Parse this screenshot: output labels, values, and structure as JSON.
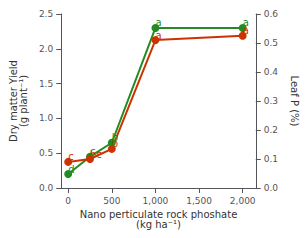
{
  "chart_data": {
    "type": "line",
    "xlabel": "Nano perticulate rock phoshate\n(kg ha⁻¹)",
    "ylabel": "Dry matter Yield\n(g plant⁻¹)",
    "y2label": "Leaf P (%)",
    "x": [
      0,
      250,
      500,
      1000,
      2000
    ],
    "series": [
      {
        "color": "#228B22",
        "marker": "circle",
        "values": [
          0.2,
          0.45,
          0.65,
          2.3,
          2.3
        ],
        "annotations": [
          "d",
          "c",
          "b",
          "a",
          "a"
        ]
      },
      {
        "color": "#CC3300",
        "marker": "circle",
        "axis": "y2",
        "values": [
          0.09,
          0.1,
          0.135,
          0.51,
          0.525
        ],
        "annotations": [
          "c",
          "bc",
          "b",
          "a",
          "a"
        ]
      }
    ],
    "xlim": [
      -80,
      2150
    ],
    "xticks": [
      0,
      500,
      {
        "value": 1000,
        "label": "1,000"
      },
      {
        "value": 1500,
        "label": "1,500"
      },
      {
        "value": 2000,
        "label": "2,000"
      }
    ],
    "ylim": [
      0.0,
      2.5
    ],
    "yticks": [
      {
        "value": 0,
        "label": "0.0"
      },
      0.5,
      {
        "value": 1,
        "label": "1.0"
      },
      1.5,
      {
        "value": 2,
        "label": "2.0"
      },
      2.5
    ],
    "y2lim": [
      0.0,
      0.6
    ],
    "y2ticks": [
      {
        "value": 0,
        "label": "0.0"
      },
      0.1,
      0.2,
      0.3,
      0.4,
      0.5,
      0.6
    ],
    "grid": false
  }
}
